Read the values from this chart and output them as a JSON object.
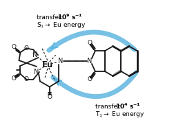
{
  "bg_color": "#ffffff",
  "arrow_color": "#5ab4e0",
  "line_color": "#1a1a1a",
  "figsize": [
    2.52,
    1.88
  ],
  "dpi": 100,
  "t1_text1": "T",
  "t1_text2": "→ Eu energy",
  "t1_text3": "transfer: ",
  "t1_bold": "10⁴ s⁻¹",
  "s1_text1": "S",
  "s1_text2": "→ Eu energy",
  "s1_text3": "transfer: ",
  "s1_bold": "10⁹ s⁻¹"
}
